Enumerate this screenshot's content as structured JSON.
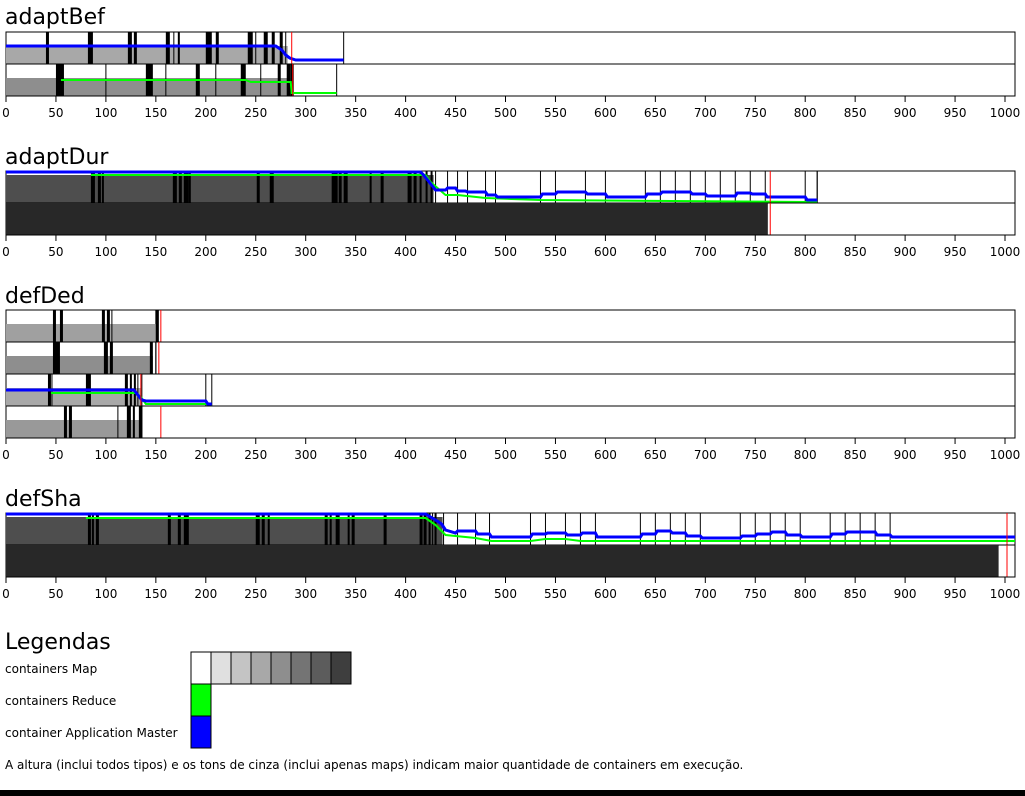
{
  "legend": {
    "title": "Legendas",
    "map_label": "containers Map",
    "reduce_label": "containers Reduce",
    "am_label": "container Application Master",
    "map_shades": [
      "#ffffff",
      "#e0e0e0",
      "#c4c4c4",
      "#a8a8a8",
      "#8e8e8e",
      "#747474",
      "#5c5c5c",
      "#3e3e3e"
    ],
    "reduce_color": "#00ff00",
    "am_color": "#0000ff",
    "note": "A altura (inclui todos tipos) e os tons de cinza (inclui apenas maps) indicam maior quantidade de containers em execução."
  },
  "axis_ticks": [
    "0",
    "50",
    "100",
    "150",
    "200",
    "250",
    "300",
    "350",
    "400",
    "450",
    "500",
    "550",
    "600",
    "650",
    "700",
    "750",
    "800",
    "850",
    "900",
    "950",
    "1000"
  ],
  "colors": {
    "reduce": "#00ff00",
    "am": "#0000ff",
    "marker": "#ff0000",
    "bar_black": "#000000"
  },
  "chart_data": [
    {
      "type": "timeline",
      "title": "adaptBef",
      "xlim": [
        0,
        1010
      ],
      "rows": [
        {
          "end": 338,
          "marker": 286,
          "map_fill": {
            "start": 0,
            "end": 282,
            "shade": "#a8a8a8"
          },
          "am_line": [
            [
              0,
              46
            ],
            [
              270,
              46
            ],
            [
              276,
              50
            ],
            [
              280,
              55
            ],
            [
              284,
              58
            ],
            [
              290,
              60
            ],
            [
              338,
              60
            ]
          ],
          "reduce_line": [],
          "black_bars": [
            [
              40,
              3
            ],
            [
              82,
              5
            ],
            [
              122,
              4
            ],
            [
              128,
              3
            ],
            [
              160,
              4
            ],
            [
              172,
              2
            ],
            [
              200,
              6
            ],
            [
              210,
              3
            ],
            [
              242,
              5
            ],
            [
              258,
              4
            ],
            [
              266,
              3
            ],
            [
              274,
              3
            ]
          ],
          "thin_lines": [
            168,
            250,
            280
          ]
        },
        {
          "end": 331,
          "marker": 287,
          "map_fill": {
            "start": 0,
            "end": 285,
            "shade": "#8e8e8e"
          },
          "am_line": [],
          "reduce_line": [
            [
              55,
              80
            ],
            [
              240,
              80
            ],
            [
              245,
              82
            ],
            [
              285,
              82
            ],
            [
              286,
              93
            ],
            [
              331,
              93
            ]
          ],
          "black_bars": [
            [
              50,
              8
            ],
            [
              140,
              7
            ],
            [
              190,
              4
            ],
            [
              235,
              5
            ],
            [
              272,
              3
            ],
            [
              281,
              4
            ],
            [
              285,
              3
            ]
          ],
          "thin_lines": [
            100,
            160,
            210,
            255
          ]
        }
      ]
    },
    {
      "type": "timeline",
      "title": "adaptDur",
      "xlim": [
        0,
        1010
      ],
      "rows": [
        {
          "end": 812,
          "marker": 765,
          "map_fill": {
            "start": 0,
            "end": 428,
            "shade": "#4e4e4e"
          },
          "am_line": [
            [
              0,
              172
            ],
            [
              415,
              172
            ],
            [
              418,
              175
            ],
            [
              422,
              180
            ],
            [
              426,
              185
            ],
            [
              430,
              190
            ],
            [
              440,
              190
            ],
            [
              442,
              188
            ],
            [
              450,
              188
            ],
            [
              452,
              191
            ],
            [
              460,
              191
            ],
            [
              462,
              192
            ],
            [
              480,
              192
            ],
            [
              482,
              195
            ],
            [
              490,
              195
            ],
            [
              492,
              197
            ],
            [
              535,
              197
            ],
            [
              537,
              194
            ],
            [
              550,
              194
            ],
            [
              552,
              192
            ],
            [
              580,
              192
            ],
            [
              582,
              194
            ],
            [
              600,
              194
            ],
            [
              602,
              197
            ],
            [
              640,
              197
            ],
            [
              642,
              194
            ],
            [
              655,
              194
            ],
            [
              657,
              192
            ],
            [
              685,
              192
            ],
            [
              687,
              194
            ],
            [
              700,
              194
            ],
            [
              702,
              196
            ],
            [
              730,
              196
            ],
            [
              732,
              193
            ],
            [
              745,
              193
            ],
            [
              747,
              194
            ],
            [
              760,
              194
            ],
            [
              762,
              197
            ],
            [
              800,
              197
            ],
            [
              802,
              200
            ],
            [
              812,
              200
            ]
          ],
          "reduce_line": [
            [
              85,
              175
            ],
            [
              420,
              175
            ],
            [
              425,
              182
            ],
            [
              440,
              195
            ],
            [
              452,
              195
            ],
            [
              480,
              198
            ],
            [
              535,
              200
            ],
            [
              800,
              202
            ],
            [
              812,
              202
            ]
          ],
          "black_bars": [
            [
              85,
              4
            ],
            [
              92,
              3
            ],
            [
              96,
              2
            ],
            [
              167,
              4
            ],
            [
              173,
              3
            ],
            [
              178,
              5
            ],
            [
              183,
              2
            ],
            [
              251,
              3
            ],
            [
              264,
              4
            ],
            [
              326,
              6
            ],
            [
              333,
              3
            ],
            [
              338,
              4
            ],
            [
              364,
              2
            ],
            [
              375,
              3
            ],
            [
              402,
              4
            ],
            [
              408,
              3
            ],
            [
              414,
              2
            ],
            [
              420,
              2
            ],
            [
              425,
              2
            ]
          ],
          "thin_lines": [
            430,
            442,
            452,
            462,
            480,
            490,
            535,
            550,
            580,
            600,
            640,
            655,
            670,
            685,
            700,
            715,
            730,
            745,
            760,
            800,
            812
          ]
        },
        {
          "end": 762,
          "marker": 765,
          "map_fill": {
            "start": 0,
            "end": 762,
            "shade": "#282828"
          },
          "am_line": [],
          "reduce_line": [],
          "black_bars": [],
          "thin_lines": []
        }
      ]
    },
    {
      "type": "timeline",
      "title": "defDed",
      "xlim": [
        0,
        1010
      ],
      "rows": [
        {
          "end": 150,
          "marker": 155,
          "map_fill": {
            "start": 0,
            "end": 150,
            "shade": "#a0a0a0"
          },
          "am_line": [],
          "reduce_line": [],
          "black_bars": [
            [
              47,
              3
            ],
            [
              54,
              3
            ],
            [
              96,
              3
            ],
            [
              101,
              3
            ],
            [
              150,
              3
            ]
          ],
          "thin_lines": [
            106
          ]
        },
        {
          "end": 150,
          "marker": 153,
          "map_fill": {
            "start": 0,
            "end": 147,
            "shade": "#8e8e8e"
          },
          "am_line": [],
          "reduce_line": [],
          "black_bars": [
            [
              47,
              7
            ],
            [
              98,
              4
            ],
            [
              104,
              3
            ],
            [
              144,
              3
            ]
          ],
          "thin_lines": [
            150
          ]
        },
        {
          "end": 206,
          "marker": 135,
          "map_fill": {
            "start": 0,
            "end": 135,
            "shade": "#a8a8a8"
          },
          "am_line": [
            [
              0,
              390
            ],
            [
              128,
              390
            ],
            [
              132,
              395
            ],
            [
              136,
              400
            ],
            [
              140,
              401
            ],
            [
              200,
              401
            ],
            [
              202,
              404
            ],
            [
              206,
              404
            ]
          ],
          "reduce_line": [
            [
              45,
              393
            ],
            [
              130,
              393
            ],
            [
              135,
              397
            ],
            [
              140,
              404
            ],
            [
              200,
              404
            ],
            [
              206,
              406
            ]
          ],
          "black_bars": [
            [
              42,
              3
            ],
            [
              80,
              5
            ],
            [
              119,
              3
            ],
            [
              124,
              2
            ],
            [
              128,
              2
            ]
          ],
          "thin_lines": [
            46,
            132,
            136,
            200
          ]
        },
        {
          "end": 136,
          "marker": 155,
          "map_fill": {
            "start": 0,
            "end": 136,
            "shade": "#999999"
          },
          "am_line": [],
          "reduce_line": [],
          "black_bars": [
            [
              58,
              3
            ],
            [
              63,
              3
            ],
            [
              121,
              4
            ],
            [
              127,
              2
            ],
            [
              133,
              3
            ]
          ],
          "thin_lines": [
            112,
            136
          ]
        }
      ]
    },
    {
      "type": "timeline",
      "title": "defSha",
      "xlim": [
        0,
        1010
      ],
      "rows": [
        {
          "end": 1010,
          "marker": 1002,
          "map_fill": {
            "start": 0,
            "end": 437,
            "shade": "#4e4e4e"
          },
          "am_line": [
            [
              0,
              514
            ],
            [
              420,
              514
            ],
            [
              425,
              517
            ],
            [
              430,
              520
            ],
            [
              436,
              524
            ],
            [
              440,
              530
            ],
            [
              450,
              533
            ],
            [
              452,
              531
            ],
            [
              470,
              531
            ],
            [
              472,
              534
            ],
            [
              484,
              534
            ],
            [
              486,
              537
            ],
            [
              525,
              537
            ],
            [
              527,
              534
            ],
            [
              540,
              534
            ],
            [
              542,
              533
            ],
            [
              560,
              533
            ],
            [
              562,
              535
            ],
            [
              575,
              535
            ],
            [
              577,
              533
            ],
            [
              590,
              533
            ],
            [
              592,
              537
            ],
            [
              635,
              537
            ],
            [
              637,
              534
            ],
            [
              650,
              534
            ],
            [
              652,
              531
            ],
            [
              665,
              531
            ],
            [
              667,
              533
            ],
            [
              680,
              533
            ],
            [
              682,
              536
            ],
            [
              695,
              536
            ],
            [
              697,
              538
            ],
            [
              735,
              538
            ],
            [
              737,
              536
            ],
            [
              750,
              536
            ],
            [
              752,
              534
            ],
            [
              765,
              534
            ],
            [
              767,
              532
            ],
            [
              780,
              532
            ],
            [
              782,
              535
            ],
            [
              795,
              535
            ],
            [
              797,
              537
            ],
            [
              825,
              537
            ],
            [
              827,
              534
            ],
            [
              840,
              534
            ],
            [
              842,
              532
            ],
            [
              870,
              532
            ],
            [
              872,
              535
            ],
            [
              885,
              535
            ],
            [
              887,
              537
            ],
            [
              1010,
              537
            ]
          ],
          "reduce_line": [
            [
              80,
              518
            ],
            [
              420,
              518
            ],
            [
              430,
              525
            ],
            [
              440,
              535
            ],
            [
              470,
              538
            ],
            [
              486,
              541
            ],
            [
              525,
              541
            ],
            [
              540,
              539
            ],
            [
              560,
              539
            ],
            [
              575,
              541
            ],
            [
              1010,
              541
            ]
          ],
          "black_bars": [
            [
              82,
              3
            ],
            [
              86,
              2
            ],
            [
              90,
              3
            ],
            [
              162,
              3
            ],
            [
              172,
              3
            ],
            [
              178,
              5
            ],
            [
              250,
              4
            ],
            [
              256,
              3
            ],
            [
              262,
              2
            ],
            [
              319,
              3
            ],
            [
              324,
              2
            ],
            [
              330,
              4
            ],
            [
              342,
              2
            ],
            [
              346,
              3
            ],
            [
              378,
              3
            ],
            [
              414,
              3
            ],
            [
              418,
              3
            ],
            [
              423,
              2
            ],
            [
              429,
              2
            ]
          ],
          "thin_lines": [
            427,
            438,
            452,
            470,
            484,
            525,
            540,
            560,
            575,
            590,
            635,
            650,
            665,
            680,
            695,
            735,
            750,
            765,
            780,
            795,
            825,
            840,
            855,
            870,
            885,
            1010
          ]
        },
        {
          "end": 993,
          "marker": 1002,
          "map_fill": {
            "start": 0,
            "end": 993,
            "shade": "#282828"
          },
          "am_line": [],
          "reduce_line": [],
          "black_bars": [],
          "thin_lines": []
        }
      ]
    }
  ]
}
